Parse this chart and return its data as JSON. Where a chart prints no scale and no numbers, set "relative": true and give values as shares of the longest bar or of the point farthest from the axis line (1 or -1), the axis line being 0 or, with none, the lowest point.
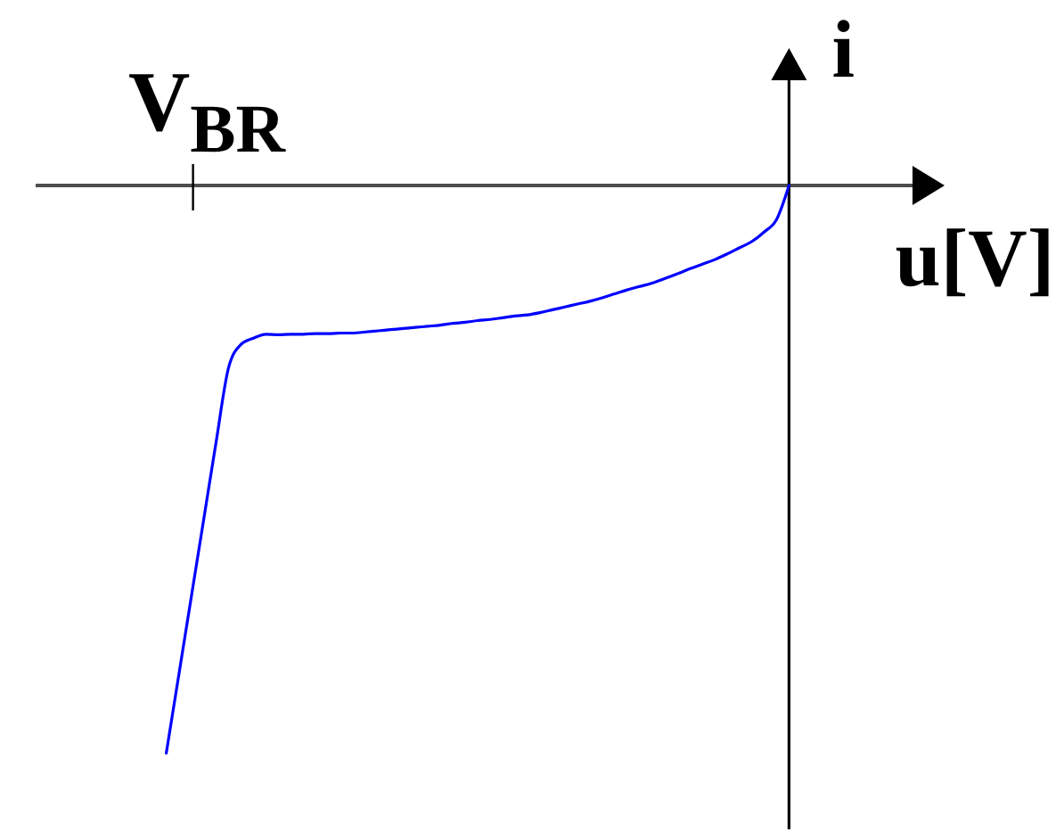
{
  "chart_data": {
    "type": "line",
    "relative": true,
    "xlabel": "u[V]",
    "ylabel": "i",
    "annotations": [
      "V$_{BR}$"
    ],
    "categories": [
      null,
      null,
      null,
      null,
      null,
      null,
      null,
      null,
      null,
      null,
      null,
      null,
      null,
      null,
      null,
      null,
      null,
      null,
      null,
      null,
      null,
      null,
      null,
      null,
      null,
      null,
      null,
      null,
      null,
      null,
      null,
      null,
      null,
      null,
      null,
      null,
      null,
      null,
      null,
      null,
      null,
      null,
      null,
      null,
      null,
      null,
      null,
      null,
      null,
      null,
      null
    ],
    "series": [
      {
        "color": "#0000ff",
        "values": [
          -1,
          -0.863,
          -0.726,
          -0.589,
          -0.452,
          -0.321,
          -0.28,
          -0.269,
          -0.262,
          -0.263,
          -0.262,
          -0.262,
          -0.261,
          -0.261,
          -0.26,
          -0.26,
          -0.258,
          -0.256,
          -0.254,
          -0.252,
          -0.25,
          -0.248,
          -0.246,
          -0.243,
          -0.241,
          -0.238,
          -0.236,
          -0.233,
          -0.23,
          -0.228,
          -0.224,
          -0.219,
          -0.214,
          -0.209,
          -0.204,
          -0.198,
          -0.191,
          -0.184,
          -0.178,
          -0.172,
          -0.164,
          -0.156,
          -0.147,
          -0.139,
          -0.131,
          -0.121,
          -0.11,
          -0.099,
          -0.082,
          -0.06,
          0
        ]
      }
    ]
  }
}
